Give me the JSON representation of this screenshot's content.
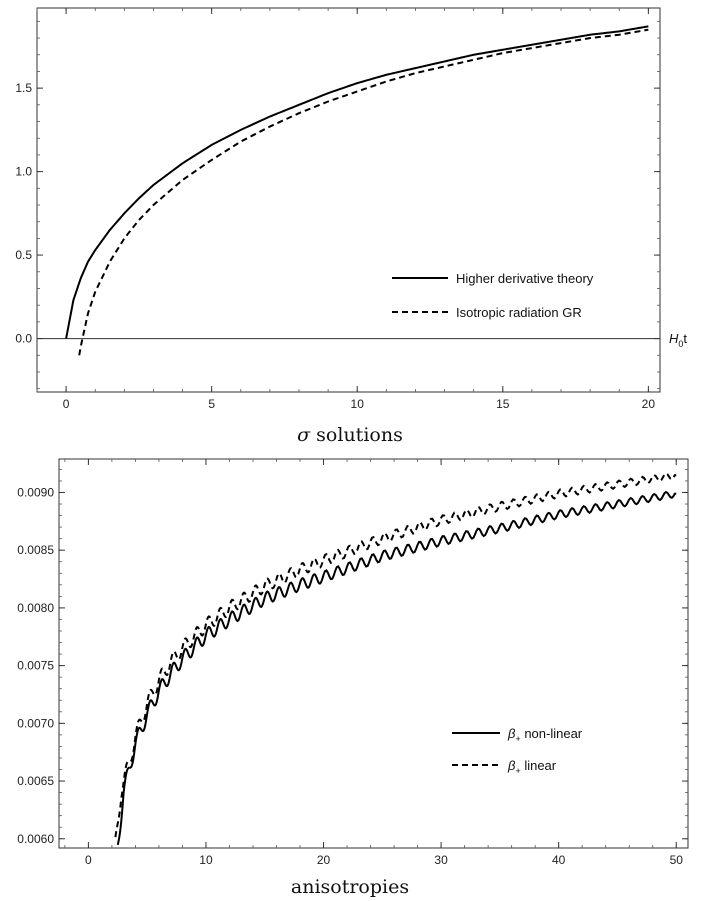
{
  "chart_data": [
    {
      "type": "line",
      "caption": "σ solutions",
      "x_axis_label": "H0t",
      "xlim": [
        -1,
        20.4
      ],
      "ylim": [
        -0.32,
        1.98
      ],
      "x_ticks": [
        0,
        5,
        10,
        15,
        20
      ],
      "x_tick_labels": [
        "0",
        "5",
        "10",
        "15",
        "20"
      ],
      "y_ticks": [
        0.0,
        0.5,
        1.0,
        1.5
      ],
      "y_tick_labels": [
        "0.0",
        "0.5",
        "1.0",
        "1.5"
      ],
      "legend_position": "lower-right",
      "series": [
        {
          "name": "Higher derivative theory",
          "style": "solid",
          "x": [
            0,
            0.25,
            0.5,
            0.75,
            1,
            1.5,
            2,
            2.5,
            3,
            4,
            5,
            6,
            7,
            8,
            9,
            10,
            11,
            12,
            13,
            14,
            15,
            16,
            17,
            18,
            19,
            20
          ],
          "y": [
            0.0,
            0.23,
            0.36,
            0.46,
            0.53,
            0.65,
            0.75,
            0.84,
            0.92,
            1.05,
            1.16,
            1.25,
            1.33,
            1.4,
            1.47,
            1.53,
            1.58,
            1.62,
            1.66,
            1.7,
            1.73,
            1.76,
            1.79,
            1.82,
            1.84,
            1.87
          ]
        },
        {
          "name": "Isotropic radiation GR",
          "style": "dashed",
          "x": [
            0.45,
            0.5,
            0.75,
            1,
            1.5,
            2,
            2.5,
            3,
            4,
            5,
            6,
            7,
            8,
            9,
            10,
            11,
            12,
            13,
            14,
            15,
            16,
            17,
            18,
            19,
            20
          ],
          "y": [
            -0.1,
            -0.05,
            0.15,
            0.28,
            0.46,
            0.6,
            0.71,
            0.8,
            0.95,
            1.07,
            1.18,
            1.27,
            1.35,
            1.42,
            1.48,
            1.54,
            1.59,
            1.63,
            1.67,
            1.71,
            1.74,
            1.77,
            1.8,
            1.82,
            1.85
          ]
        }
      ]
    },
    {
      "type": "line",
      "caption": "anisotropies",
      "xlim": [
        -2.5,
        51
      ],
      "ylim": [
        0.00592,
        0.00929
      ],
      "x_ticks": [
        0,
        10,
        20,
        30,
        40,
        50
      ],
      "x_tick_labels": [
        "0",
        "10",
        "20",
        "30",
        "40",
        "50"
      ],
      "y_ticks": [
        0.006,
        0.0065,
        0.007,
        0.0075,
        0.008,
        0.0085,
        0.009
      ],
      "y_tick_labels": [
        "0.0060",
        "0.0065",
        "0.0070",
        "0.0075",
        "0.0080",
        "0.0085",
        "0.0090"
      ],
      "legend_position": "lower-right",
      "series": [
        {
          "name": "β+ non-linear",
          "style": "solid",
          "oscillating": true,
          "x": [
            2.5,
            3,
            3.5,
            4,
            5,
            6,
            7,
            8,
            10,
            12,
            15,
            18,
            20,
            25,
            30,
            35,
            40,
            45,
            50
          ],
          "y": [
            0.00595,
            0.0064,
            0.00662,
            0.00682,
            0.00708,
            0.00728,
            0.00743,
            0.00756,
            0.00776,
            0.0079,
            0.00808,
            0.0082,
            0.00827,
            0.00845,
            0.00858,
            0.00869,
            0.00881,
            0.0089,
            0.00899
          ]
        },
        {
          "name": "β+ linear",
          "style": "dashed",
          "oscillating": true,
          "x": [
            2.3,
            2.8,
            3.5,
            4,
            5,
            6,
            7,
            8,
            10,
            12,
            15,
            18,
            20,
            25,
            30,
            35,
            40,
            45,
            50
          ],
          "y": [
            0.00595,
            0.00642,
            0.00667,
            0.00688,
            0.00717,
            0.00737,
            0.00753,
            0.00765,
            0.00785,
            0.008,
            0.00819,
            0.00833,
            0.00841,
            0.0086,
            0.00876,
            0.00888,
            0.00899,
            0.00907,
            0.00915
          ]
        }
      ]
    }
  ],
  "legend_symbol": {
    "beta": "β",
    "plus": "+",
    "suffix_nonlinear": " non−linear",
    "suffix_linear": " linear"
  }
}
